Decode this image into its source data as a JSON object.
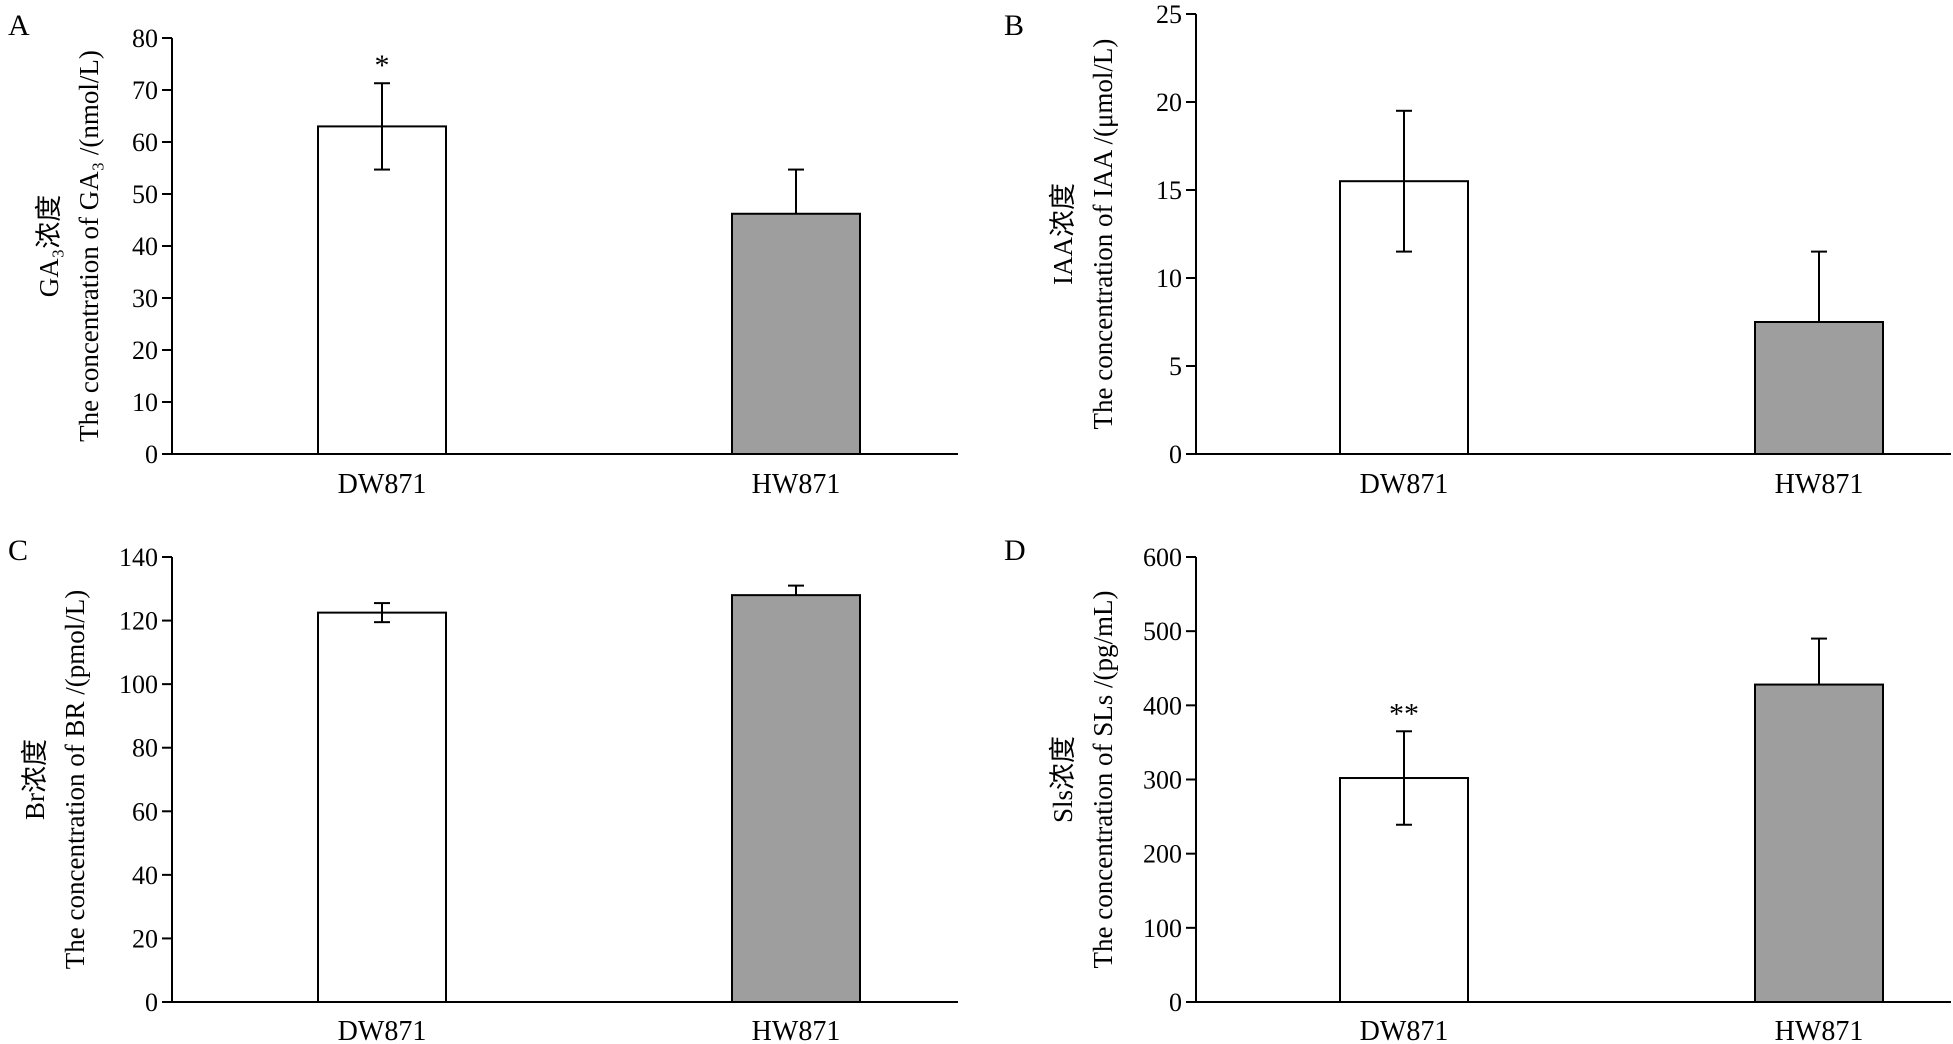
{
  "chart_data": [
    {
      "panel": "A",
      "type": "bar",
      "categories": [
        "DW871",
        "HW871"
      ],
      "values": [
        63,
        46.2
      ],
      "errors": [
        8.3,
        8.5
      ],
      "error_style": "upper-and-lower for DW871, upper-only for HW871",
      "significance": [
        "*",
        ""
      ],
      "bar_colors": [
        "#ffffff",
        "#9e9e9e"
      ],
      "ylabel_cn": "GA₃浓度",
      "ylabel_en": "The concentration of GA₃ /(nmol/L)",
      "ylim": [
        0,
        80
      ],
      "yticks": [
        0,
        10,
        20,
        30,
        40,
        50,
        60,
        70,
        80
      ],
      "grid": false
    },
    {
      "panel": "B",
      "type": "bar",
      "categories": [
        "DW871",
        "HW871"
      ],
      "values": [
        15.5,
        7.5
      ],
      "errors": [
        4,
        4
      ],
      "error_style": "upper-and-lower for DW871, upper-only for HW871",
      "significance": [
        "",
        ""
      ],
      "bar_colors": [
        "#ffffff",
        "#9e9e9e"
      ],
      "ylabel_cn": "IAA浓度",
      "ylabel_en": "The concentration of IAA /(μmol/L)",
      "ylim": [
        0,
        25
      ],
      "yticks": [
        0,
        5,
        10,
        15,
        20,
        25
      ],
      "grid": false
    },
    {
      "panel": "C",
      "type": "bar",
      "categories": [
        "DW871",
        "HW871"
      ],
      "values": [
        122.5,
        128
      ],
      "errors": [
        3,
        3
      ],
      "error_style": "upper-and-lower for DW871, upper-only for HW871",
      "significance": [
        "",
        ""
      ],
      "bar_colors": [
        "#ffffff",
        "#9e9e9e"
      ],
      "ylabel_cn": "Br浓度",
      "ylabel_en": "The concentration of BR /(pmol/L)",
      "ylim": [
        0,
        140
      ],
      "yticks": [
        0,
        20,
        40,
        60,
        80,
        100,
        120,
        140
      ],
      "grid": false
    },
    {
      "panel": "D",
      "type": "bar",
      "categories": [
        "DW871",
        "HW871"
      ],
      "values": [
        302,
        428
      ],
      "errors": [
        63,
        62
      ],
      "error_style": "upper-and-lower for DW871, upper-only for HW871",
      "significance": [
        "**",
        ""
      ],
      "bar_colors": [
        "#ffffff",
        "#9e9e9e"
      ],
      "ylabel_cn": "Sls浓度",
      "ylabel_en": "The concentration of SLs /(pg/mL)",
      "ylim": [
        0,
        600
      ],
      "yticks": [
        0,
        100,
        200,
        300,
        400,
        500,
        600
      ],
      "grid": false
    }
  ]
}
